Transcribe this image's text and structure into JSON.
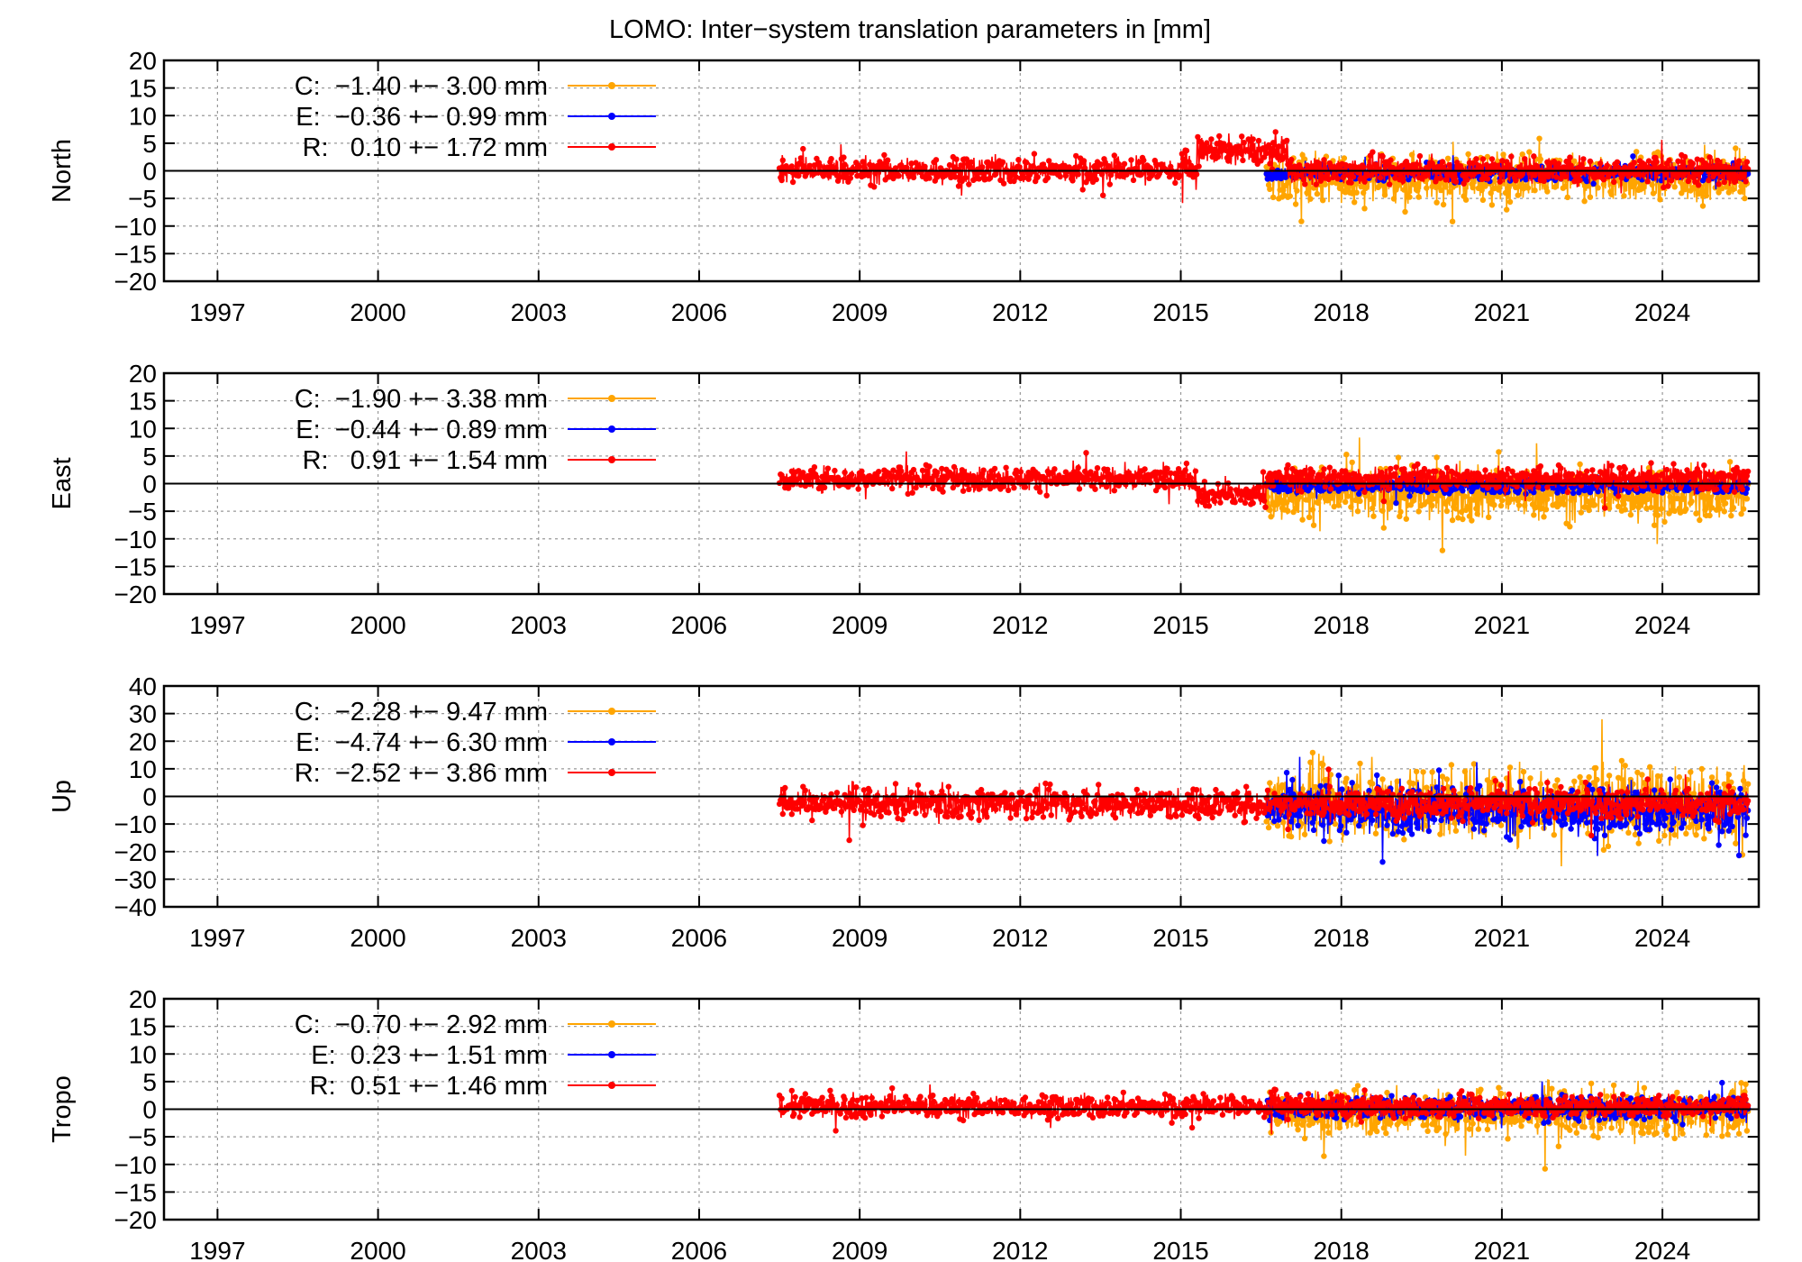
{
  "title": "LOMO: Inter−system translation parameters in [mm]",
  "colors": {
    "C": "#ffa500",
    "E": "#0000ff",
    "R": "#ff0000"
  },
  "chart_data": [
    {
      "type": "scatter",
      "ylabel": "North",
      "ylim": [
        -20,
        20
      ],
      "yticks": [
        20,
        15,
        10,
        5,
        0,
        -5,
        -10,
        -15,
        -20
      ],
      "xlim": [
        1996,
        2025.8
      ],
      "xticks": [
        1997,
        2000,
        2003,
        2006,
        2009,
        2012,
        2015,
        2018,
        2021,
        2024
      ],
      "grid": true,
      "legend_position": "top-left",
      "series": [
        {
          "name": "C",
          "legend": "C:  −1.40 +− 3.00 mm",
          "start": 2016.6,
          "end": 2025.6,
          "center": -1.4,
          "spread": 3.0
        },
        {
          "name": "E",
          "legend": "E:  −0.36 +− 0.99 mm",
          "start": 2016.6,
          "end": 2025.6,
          "center": -0.36,
          "spread": 0.99
        },
        {
          "name": "R",
          "legend": "R:   0.10 +− 1.72 mm",
          "start": 2007.5,
          "end": 2025.6,
          "center": 0.1,
          "spread": 1.72
        }
      ]
    },
    {
      "type": "scatter",
      "ylabel": "East",
      "ylim": [
        -20,
        20
      ],
      "yticks": [
        20,
        15,
        10,
        5,
        0,
        -5,
        -10,
        -15,
        -20
      ],
      "xlim": [
        1996,
        2025.8
      ],
      "xticks": [
        1997,
        2000,
        2003,
        2006,
        2009,
        2012,
        2015,
        2018,
        2021,
        2024
      ],
      "grid": true,
      "legend_position": "top-left",
      "series": [
        {
          "name": "C",
          "legend": "C:  −1.90 +− 3.38 mm",
          "start": 2016.6,
          "end": 2025.6,
          "center": -1.9,
          "spread": 3.38
        },
        {
          "name": "E",
          "legend": "E:  −0.44 +− 0.89 mm",
          "start": 2016.6,
          "end": 2025.6,
          "center": -0.44,
          "spread": 0.89
        },
        {
          "name": "R",
          "legend": "R:   0.91 +− 1.54 mm",
          "start": 2007.5,
          "end": 2025.6,
          "center": 0.91,
          "spread": 1.54
        }
      ]
    },
    {
      "type": "scatter",
      "ylabel": "Up",
      "ylim": [
        -40,
        40
      ],
      "yticks": [
        40,
        30,
        20,
        10,
        0,
        -10,
        -20,
        -30,
        -40
      ],
      "xlim": [
        1996,
        2025.8
      ],
      "xticks": [
        1997,
        2000,
        2003,
        2006,
        2009,
        2012,
        2015,
        2018,
        2021,
        2024
      ],
      "grid": true,
      "legend_position": "top-left",
      "series": [
        {
          "name": "C",
          "legend": "C:  −2.28 +− 9.47 mm",
          "start": 2016.6,
          "end": 2025.6,
          "center": -2.28,
          "spread": 9.47
        },
        {
          "name": "E",
          "legend": "E:  −4.74 +− 6.30 mm",
          "start": 2016.6,
          "end": 2025.6,
          "center": -4.74,
          "spread": 6.3
        },
        {
          "name": "R",
          "legend": "R:  −2.52 +− 3.86 mm",
          "start": 2007.5,
          "end": 2025.6,
          "center": -2.52,
          "spread": 3.86
        }
      ]
    },
    {
      "type": "scatter",
      "ylabel": "Tropo",
      "ylim": [
        -20,
        20
      ],
      "yticks": [
        20,
        15,
        10,
        5,
        0,
        -5,
        -10,
        -15,
        -20
      ],
      "xlim": [
        1996,
        2025.8
      ],
      "xticks": [
        1997,
        2000,
        2003,
        2006,
        2009,
        2012,
        2015,
        2018,
        2021,
        2024
      ],
      "grid": true,
      "legend_position": "top-left",
      "series": [
        {
          "name": "C",
          "legend": "C:  −0.70 +− 2.92 mm",
          "start": 2016.6,
          "end": 2025.6,
          "center": -0.7,
          "spread": 2.92
        },
        {
          "name": "E",
          "legend": "E:  0.23 +− 1.51 mm",
          "start": 2016.6,
          "end": 2025.6,
          "center": 0.23,
          "spread": 1.51
        },
        {
          "name": "R",
          "legend": "R:  0.51 +− 1.46 mm",
          "start": 2007.5,
          "end": 2025.6,
          "center": 0.51,
          "spread": 1.46
        }
      ]
    }
  ]
}
